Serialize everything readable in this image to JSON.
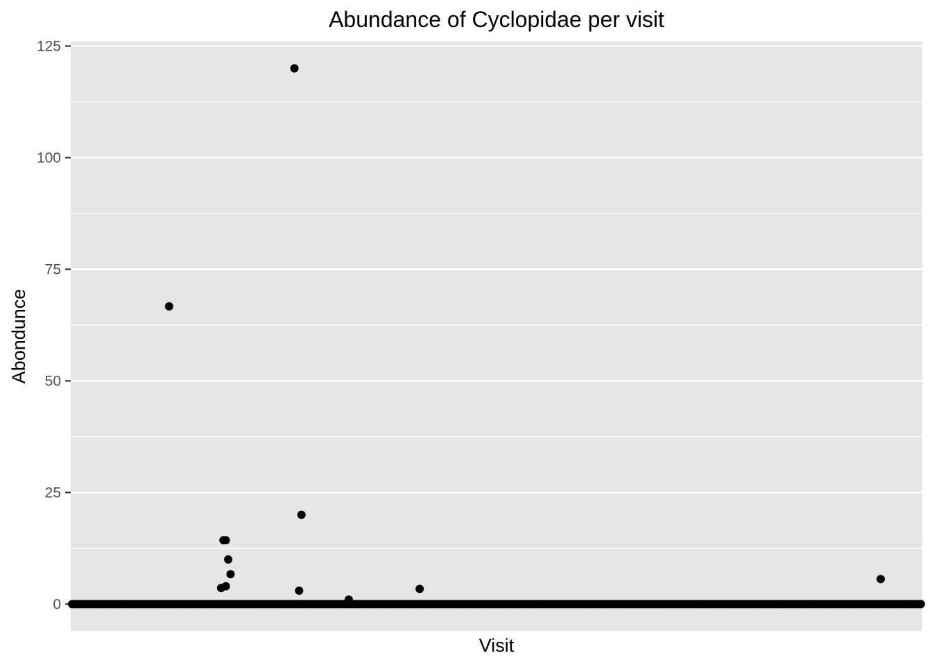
{
  "chart_data": {
    "type": "scatter",
    "title": "Abundance of Cyclopidae per visit",
    "xlabel": "Visit",
    "ylabel": "Abondunce",
    "ylim": [
      -6,
      126
    ],
    "y_ticks": [
      0,
      25,
      50,
      75,
      100,
      125
    ],
    "y_tick_labels": [
      "0",
      "25",
      "50",
      "75",
      "100",
      "125"
    ],
    "x_ticks": [],
    "x_tick_labels": [],
    "x_count": 360,
    "grid": true,
    "legend": "none",
    "panel_color": "#e5e5e5",
    "grid_color": "#ffffff",
    "point_color": "#000000",
    "series": [
      {
        "baseline_value": 0,
        "points": [
          {
            "x": 41,
            "y": 66.7
          },
          {
            "x": 63,
            "y": 3.6
          },
          {
            "x": 64,
            "y": 14.3
          },
          {
            "x": 65,
            "y": 4.0
          },
          {
            "x": 65,
            "y": 14.3
          },
          {
            "x": 66,
            "y": 10.0
          },
          {
            "x": 67,
            "y": 6.7
          },
          {
            "x": 94,
            "y": 120.0
          },
          {
            "x": 96,
            "y": 3.0
          },
          {
            "x": 97,
            "y": 20.0
          },
          {
            "x": 117,
            "y": 1.0
          },
          {
            "x": 147,
            "y": 3.4
          },
          {
            "x": 342,
            "y": 5.6
          }
        ]
      }
    ]
  }
}
